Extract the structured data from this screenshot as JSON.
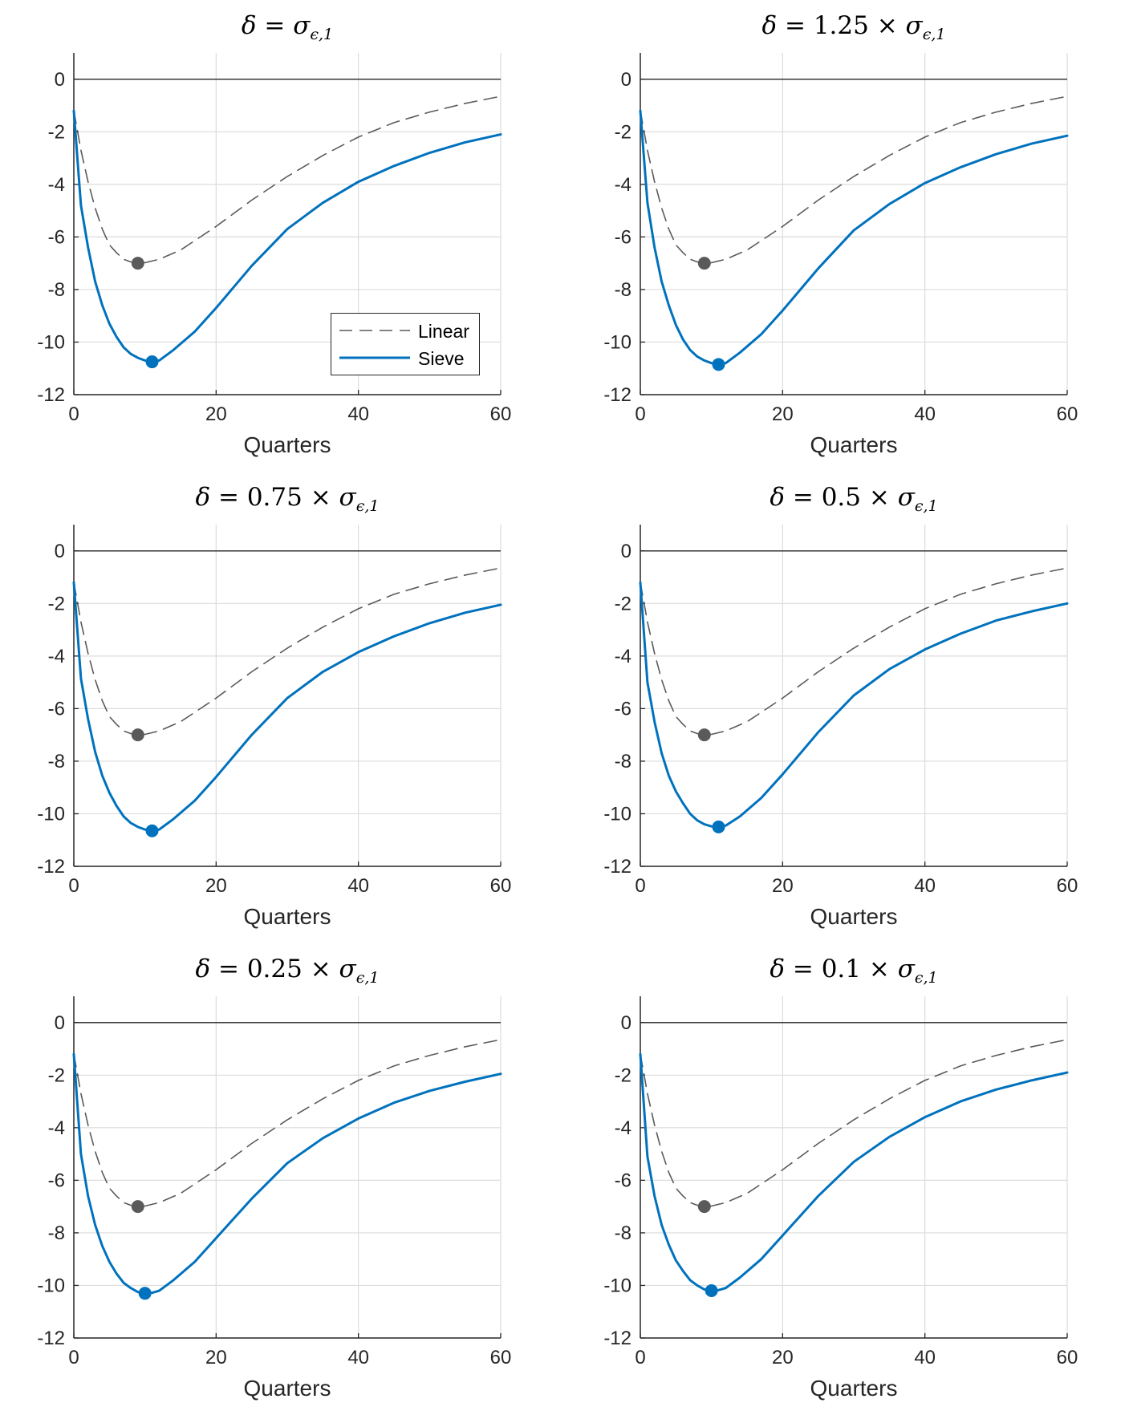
{
  "colors": {
    "linear": "#5a5a5a",
    "sieve": "#0072bd",
    "axis": "#262626",
    "grid": "#dcdcdc",
    "zero_line": "#262626"
  },
  "legend": {
    "linear": "Linear",
    "sieve": "Sieve"
  },
  "chart_data": [
    {
      "type": "line",
      "title_tex": {
        "lhs": "δ",
        "coef": "",
        "sub": "ϵ,1"
      },
      "xlabel": "Quarters",
      "ylabel": "",
      "xlim": [
        0,
        60
      ],
      "ylim": [
        -12,
        1
      ],
      "xticks": [
        0,
        20,
        40,
        60
      ],
      "yticks": [
        0,
        -2,
        -4,
        -6,
        -8,
        -10,
        -12
      ],
      "grid": true,
      "legend_position": "lower-right",
      "show_legend": true,
      "series": [
        {
          "name": "Linear",
          "style": "dashed",
          "x": [
            0,
            1,
            2,
            3,
            4,
            5,
            6,
            7,
            8,
            9,
            10,
            12,
            15,
            20,
            25,
            30,
            35,
            40,
            45,
            50,
            55,
            60
          ],
          "y": [
            -1.2,
            -2.7,
            -3.9,
            -4.9,
            -5.7,
            -6.3,
            -6.6,
            -6.85,
            -6.95,
            -7.0,
            -6.98,
            -6.85,
            -6.5,
            -5.6,
            -4.6,
            -3.7,
            -2.9,
            -2.2,
            -1.65,
            -1.25,
            -0.92,
            -0.65
          ],
          "marker": {
            "x": 9,
            "y": -7.0
          }
        },
        {
          "name": "Sieve",
          "style": "solid",
          "x": [
            0,
            1,
            2,
            3,
            4,
            5,
            6,
            7,
            8,
            9,
            10,
            11,
            12,
            14,
            17,
            20,
            25,
            30,
            35,
            40,
            45,
            50,
            55,
            60
          ],
          "y": [
            -1.2,
            -4.8,
            -6.4,
            -7.7,
            -8.6,
            -9.3,
            -9.8,
            -10.2,
            -10.45,
            -10.6,
            -10.7,
            -10.75,
            -10.7,
            -10.3,
            -9.6,
            -8.7,
            -7.1,
            -5.7,
            -4.7,
            -3.9,
            -3.3,
            -2.8,
            -2.4,
            -2.1
          ],
          "marker": {
            "x": 11,
            "y": -10.75
          }
        }
      ]
    },
    {
      "type": "line",
      "title_tex": {
        "lhs": "δ",
        "coef": "1.25",
        "sub": "ϵ,1"
      },
      "xlabel": "Quarters",
      "ylabel": "",
      "xlim": [
        0,
        60
      ],
      "ylim": [
        -12,
        1
      ],
      "xticks": [
        0,
        20,
        40,
        60
      ],
      "yticks": [
        0,
        -2,
        -4,
        -6,
        -8,
        -10,
        -12
      ],
      "grid": true,
      "show_legend": false,
      "series": [
        {
          "name": "Linear",
          "style": "dashed",
          "x": [
            0,
            1,
            2,
            3,
            4,
            5,
            6,
            7,
            8,
            9,
            10,
            12,
            15,
            20,
            25,
            30,
            35,
            40,
            45,
            50,
            55,
            60
          ],
          "y": [
            -1.2,
            -2.7,
            -3.9,
            -4.9,
            -5.7,
            -6.3,
            -6.6,
            -6.85,
            -6.95,
            -7.0,
            -6.98,
            -6.85,
            -6.5,
            -5.6,
            -4.6,
            -3.7,
            -2.9,
            -2.2,
            -1.65,
            -1.25,
            -0.92,
            -0.65
          ],
          "marker": {
            "x": 9,
            "y": -7.0
          }
        },
        {
          "name": "Sieve",
          "style": "solid",
          "x": [
            0,
            1,
            2,
            3,
            4,
            5,
            6,
            7,
            8,
            9,
            10,
            11,
            12,
            14,
            17,
            20,
            25,
            30,
            35,
            40,
            45,
            50,
            55,
            60
          ],
          "y": [
            -1.2,
            -4.7,
            -6.4,
            -7.7,
            -8.6,
            -9.35,
            -9.9,
            -10.3,
            -10.55,
            -10.7,
            -10.8,
            -10.85,
            -10.8,
            -10.4,
            -9.7,
            -8.8,
            -7.2,
            -5.75,
            -4.75,
            -3.95,
            -3.35,
            -2.85,
            -2.45,
            -2.15
          ],
          "marker": {
            "x": 11,
            "y": -10.85
          }
        }
      ]
    },
    {
      "type": "line",
      "title_tex": {
        "lhs": "δ",
        "coef": "0.75",
        "sub": "ϵ,1"
      },
      "xlabel": "Quarters",
      "ylabel": "",
      "xlim": [
        0,
        60
      ],
      "ylim": [
        -12,
        1
      ],
      "xticks": [
        0,
        20,
        40,
        60
      ],
      "yticks": [
        0,
        -2,
        -4,
        -6,
        -8,
        -10,
        -12
      ],
      "grid": true,
      "show_legend": false,
      "series": [
        {
          "name": "Linear",
          "style": "dashed",
          "x": [
            0,
            1,
            2,
            3,
            4,
            5,
            6,
            7,
            8,
            9,
            10,
            12,
            15,
            20,
            25,
            30,
            35,
            40,
            45,
            50,
            55,
            60
          ],
          "y": [
            -1.2,
            -2.7,
            -3.9,
            -4.9,
            -5.7,
            -6.3,
            -6.6,
            -6.85,
            -6.95,
            -7.0,
            -6.98,
            -6.85,
            -6.5,
            -5.6,
            -4.6,
            -3.7,
            -2.9,
            -2.2,
            -1.65,
            -1.25,
            -0.92,
            -0.65
          ],
          "marker": {
            "x": 9,
            "y": -7.0
          }
        },
        {
          "name": "Sieve",
          "style": "solid",
          "x": [
            0,
            1,
            2,
            3,
            4,
            5,
            6,
            7,
            8,
            9,
            10,
            11,
            12,
            14,
            17,
            20,
            25,
            30,
            35,
            40,
            45,
            50,
            55,
            60
          ],
          "y": [
            -1.2,
            -4.85,
            -6.4,
            -7.65,
            -8.55,
            -9.2,
            -9.7,
            -10.1,
            -10.35,
            -10.5,
            -10.6,
            -10.65,
            -10.6,
            -10.2,
            -9.5,
            -8.6,
            -7.0,
            -5.6,
            -4.6,
            -3.85,
            -3.25,
            -2.75,
            -2.35,
            -2.05
          ],
          "marker": {
            "x": 11,
            "y": -10.65
          }
        }
      ]
    },
    {
      "type": "line",
      "title_tex": {
        "lhs": "δ",
        "coef": "0.5",
        "sub": "ϵ,1"
      },
      "xlabel": "Quarters",
      "ylabel": "",
      "xlim": [
        0,
        60
      ],
      "ylim": [
        -12,
        1
      ],
      "xticks": [
        0,
        20,
        40,
        60
      ],
      "yticks": [
        0,
        -2,
        -4,
        -6,
        -8,
        -10,
        -12
      ],
      "grid": true,
      "show_legend": false,
      "series": [
        {
          "name": "Linear",
          "style": "dashed",
          "x": [
            0,
            1,
            2,
            3,
            4,
            5,
            6,
            7,
            8,
            9,
            10,
            12,
            15,
            20,
            25,
            30,
            35,
            40,
            45,
            50,
            55,
            60
          ],
          "y": [
            -1.2,
            -2.7,
            -3.9,
            -4.9,
            -5.7,
            -6.3,
            -6.6,
            -6.85,
            -6.95,
            -7.0,
            -6.98,
            -6.85,
            -6.5,
            -5.6,
            -4.6,
            -3.7,
            -2.9,
            -2.2,
            -1.65,
            -1.25,
            -0.92,
            -0.65
          ],
          "marker": {
            "x": 9,
            "y": -7.0
          }
        },
        {
          "name": "Sieve",
          "style": "solid",
          "x": [
            0,
            1,
            2,
            3,
            4,
            5,
            6,
            7,
            8,
            9,
            10,
            11,
            12,
            14,
            17,
            20,
            25,
            30,
            35,
            40,
            45,
            50,
            55,
            60
          ],
          "y": [
            -1.2,
            -5.0,
            -6.5,
            -7.7,
            -8.55,
            -9.15,
            -9.6,
            -10.0,
            -10.25,
            -10.4,
            -10.48,
            -10.5,
            -10.45,
            -10.1,
            -9.4,
            -8.5,
            -6.9,
            -5.5,
            -4.5,
            -3.75,
            -3.15,
            -2.65,
            -2.3,
            -2.0
          ],
          "marker": {
            "x": 11,
            "y": -10.5
          }
        }
      ]
    },
    {
      "type": "line",
      "title_tex": {
        "lhs": "δ",
        "coef": "0.25",
        "sub": "ϵ,1"
      },
      "xlabel": "Quarters",
      "ylabel": "",
      "xlim": [
        0,
        60
      ],
      "ylim": [
        -12,
        1
      ],
      "xticks": [
        0,
        20,
        40,
        60
      ],
      "yticks": [
        0,
        -2,
        -4,
        -6,
        -8,
        -10,
        -12
      ],
      "grid": true,
      "show_legend": false,
      "series": [
        {
          "name": "Linear",
          "style": "dashed",
          "x": [
            0,
            1,
            2,
            3,
            4,
            5,
            6,
            7,
            8,
            9,
            10,
            12,
            15,
            20,
            25,
            30,
            35,
            40,
            45,
            50,
            55,
            60
          ],
          "y": [
            -1.2,
            -2.7,
            -3.9,
            -4.9,
            -5.7,
            -6.3,
            -6.6,
            -6.85,
            -6.95,
            -7.0,
            -6.98,
            -6.85,
            -6.5,
            -5.6,
            -4.6,
            -3.7,
            -2.9,
            -2.2,
            -1.65,
            -1.25,
            -0.92,
            -0.65
          ],
          "marker": {
            "x": 9,
            "y": -7.0
          }
        },
        {
          "name": "Sieve",
          "style": "solid",
          "x": [
            0,
            1,
            2,
            3,
            4,
            5,
            6,
            7,
            8,
            9,
            10,
            11,
            12,
            14,
            17,
            20,
            25,
            30,
            35,
            40,
            45,
            50,
            55,
            60
          ],
          "y": [
            -1.2,
            -5.0,
            -6.6,
            -7.7,
            -8.5,
            -9.1,
            -9.55,
            -9.9,
            -10.1,
            -10.25,
            -10.3,
            -10.28,
            -10.2,
            -9.8,
            -9.1,
            -8.2,
            -6.7,
            -5.35,
            -4.4,
            -3.65,
            -3.05,
            -2.6,
            -2.25,
            -1.95
          ],
          "marker": {
            "x": 10,
            "y": -10.3
          }
        }
      ]
    },
    {
      "type": "line",
      "title_tex": {
        "lhs": "δ",
        "coef": "0.1",
        "sub": "ϵ,1"
      },
      "xlabel": "Quarters",
      "ylabel": "",
      "xlim": [
        0,
        60
      ],
      "ylim": [
        -12,
        1
      ],
      "xticks": [
        0,
        20,
        40,
        60
      ],
      "yticks": [
        0,
        -2,
        -4,
        -6,
        -8,
        -10,
        -12
      ],
      "grid": true,
      "show_legend": false,
      "series": [
        {
          "name": "Linear",
          "style": "dashed",
          "x": [
            0,
            1,
            2,
            3,
            4,
            5,
            6,
            7,
            8,
            9,
            10,
            12,
            15,
            20,
            25,
            30,
            35,
            40,
            45,
            50,
            55,
            60
          ],
          "y": [
            -1.2,
            -2.7,
            -3.9,
            -4.9,
            -5.7,
            -6.3,
            -6.6,
            -6.85,
            -6.95,
            -7.0,
            -6.98,
            -6.85,
            -6.5,
            -5.6,
            -4.6,
            -3.7,
            -2.9,
            -2.2,
            -1.65,
            -1.25,
            -0.92,
            -0.65
          ],
          "marker": {
            "x": 9,
            "y": -7.0
          }
        },
        {
          "name": "Sieve",
          "style": "solid",
          "x": [
            0,
            1,
            2,
            3,
            4,
            5,
            6,
            7,
            8,
            9,
            10,
            11,
            12,
            14,
            17,
            20,
            25,
            30,
            35,
            40,
            45,
            50,
            55,
            60
          ],
          "y": [
            -1.2,
            -5.1,
            -6.6,
            -7.7,
            -8.45,
            -9.05,
            -9.45,
            -9.8,
            -10.0,
            -10.15,
            -10.2,
            -10.18,
            -10.1,
            -9.7,
            -9.0,
            -8.1,
            -6.6,
            -5.3,
            -4.35,
            -3.6,
            -3.0,
            -2.55,
            -2.2,
            -1.9
          ],
          "marker": {
            "x": 10,
            "y": -10.2
          }
        }
      ]
    }
  ]
}
